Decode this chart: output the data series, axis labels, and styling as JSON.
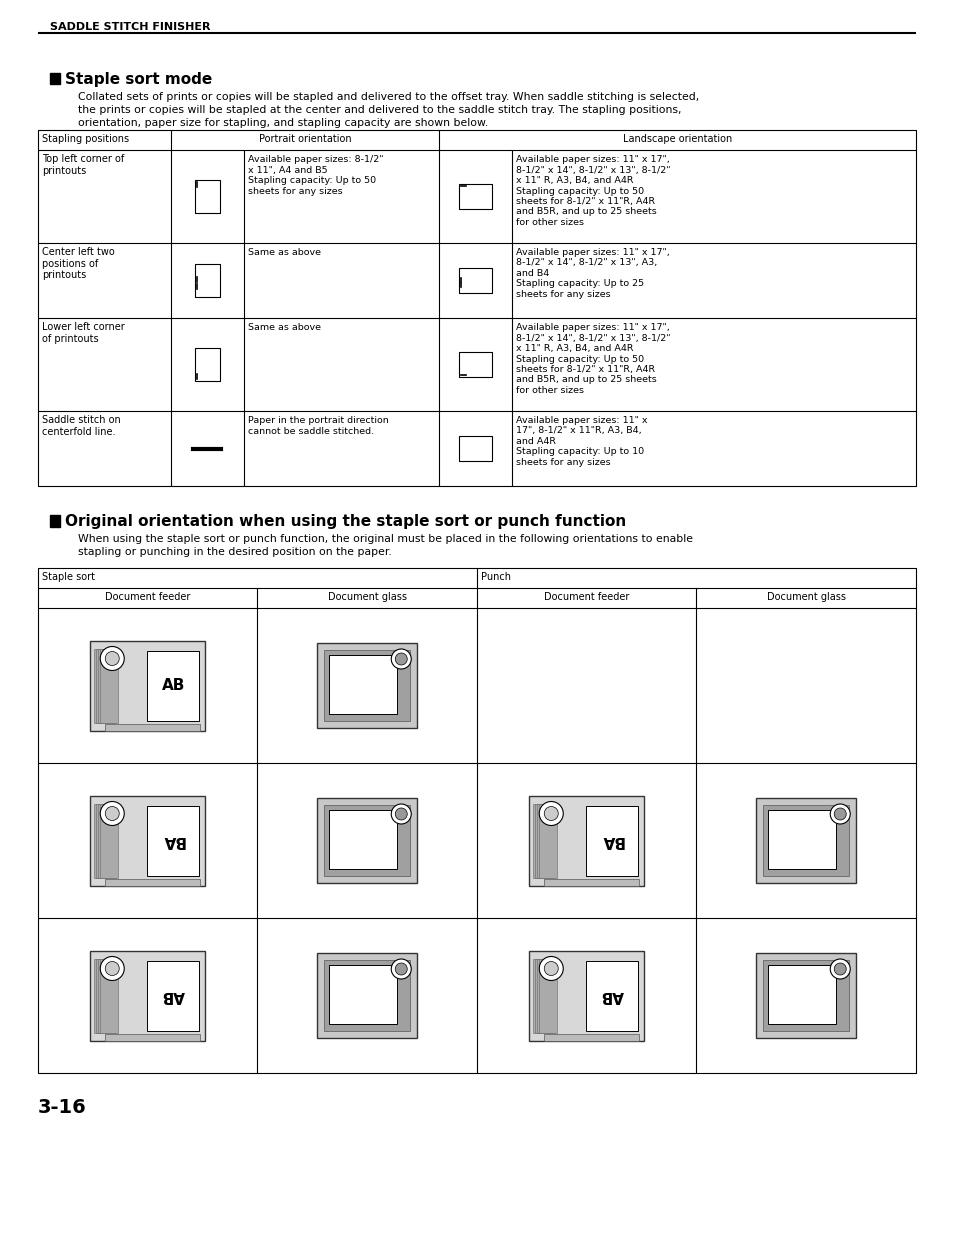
{
  "page_title": "SADDLE STITCH FINISHER",
  "section1_title": "Staple sort mode",
  "section1_body": "Collated sets of prints or copies will be stapled and delivered to the offset tray. When saddle stitching is selected,\nthe prints or copies will be stapled at the center and delivered to the saddle stitch tray. The stapling positions,\norientation, paper size for stapling, and stapling capacity are shown below.",
  "table1_rows": [
    {
      "pos_label": "Top left corner of\nprintouts",
      "portrait_text": "Available paper sizes: 8-1/2\"\nx 11\", A4 and B5\nStapling capacity: Up to 50\nsheets for any sizes",
      "landscape_text": "Available paper sizes: 11\" x 17\",\n8-1/2\" x 14\", 8-1/2\" x 13\", 8-1/2\"\nx 11\" R, A3, B4, and A4R\nStapling capacity: Up to 50\nsheets for 8-1/2\" x 11\"R, A4R\nand B5R, and up to 25 sheets\nfor other sizes",
      "portrait_staple": "top_left",
      "landscape_staple": "top_left"
    },
    {
      "pos_label": "Center left two\npositions of\nprintouts",
      "portrait_text": "Same as above",
      "landscape_text": "Available paper sizes: 11\" x 17\",\n8-1/2\" x 14\", 8-1/2\" x 13\", A3,\nand B4\nStapling capacity: Up to 25\nsheets for any sizes",
      "portrait_staple": "center_left",
      "landscape_staple": "center_left"
    },
    {
      "pos_label": "Lower left corner\nof printouts",
      "portrait_text": "Same as above",
      "landscape_text": "Available paper sizes: 11\" x 17\",\n8-1/2\" x 14\", 8-1/2\" x 13\", 8-1/2\"\nx 11\" R, A3, B4, and A4R\nStapling capacity: Up to 50\nsheets for 8-1/2\" x 11\"R, A4R\nand B5R, and up to 25 sheets\nfor other sizes",
      "portrait_staple": "bottom_left",
      "landscape_staple": "bottom_left"
    },
    {
      "pos_label": "Saddle stitch on\ncenterfold line.",
      "portrait_text": "Paper in the portrait direction\ncannot be saddle stitched.",
      "landscape_text": "Available paper sizes: 11\" x\n17\", 8-1/2\" x 11\"R, A3, B4,\nand A4R\nStapling capacity: Up to 10\nsheets for any sizes",
      "portrait_staple": "saddle",
      "landscape_staple": "saddle_landscape"
    }
  ],
  "section2_title": "Original orientation when using the staple sort or punch function",
  "section2_body": "When using the staple sort or punch function, the original must be placed in the following orientations to enable\nstapling or punching in the desired position on the paper.",
  "table2_col1": "Staple sort",
  "table2_col2": "Punch",
  "table2_sub_headers": [
    "Document feeder",
    "Document glass",
    "Document feeder",
    "Document glass"
  ],
  "page_number": "3-16",
  "bg_color": "#ffffff"
}
